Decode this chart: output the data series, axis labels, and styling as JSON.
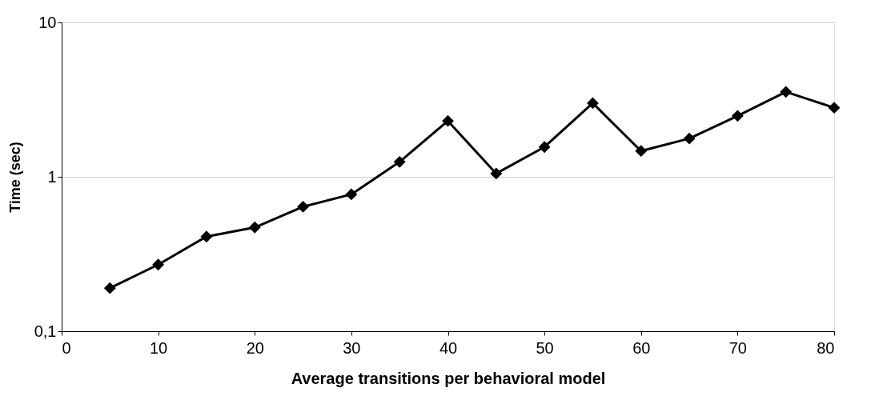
{
  "chart_data": {
    "type": "line",
    "xlabel": "Average transitions per behavioral model",
    "ylabel": "Time (sec)",
    "x": [
      5,
      10,
      15,
      20,
      25,
      30,
      35,
      40,
      45,
      50,
      55,
      60,
      65,
      70,
      75,
      80
    ],
    "series": [
      {
        "color": "#000000",
        "values": [
          0.19,
          0.27,
          0.41,
          0.47,
          0.64,
          0.77,
          1.25,
          2.3,
          1.05,
          1.56,
          3.0,
          1.47,
          1.77,
          2.48,
          3.55,
          2.8
        ]
      }
    ],
    "log": "y",
    "xlim": [
      0,
      80
    ],
    "xticks": [
      0,
      10,
      20,
      30,
      40,
      50,
      60,
      70,
      80
    ],
    "ylim": [
      0.1,
      10
    ],
    "yticks": [
      {
        "value": 0.1,
        "label": "0,1"
      },
      1,
      10
    ],
    "grid": "y",
    "marker": "diamond",
    "line_style": "solid"
  }
}
